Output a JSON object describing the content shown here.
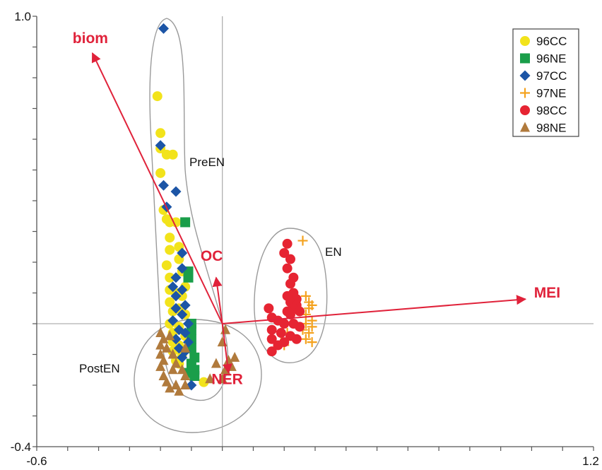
{
  "chart_data": {
    "type": "scatter",
    "title": "",
    "xlabel": "",
    "ylabel": "",
    "xlim": [
      -0.6,
      1.2
    ],
    "ylim": [
      -0.4,
      1.0
    ],
    "x_tick_labels": [
      "-0.6",
      "1.2"
    ],
    "y_tick_labels": [
      "1.0",
      "-0.4"
    ],
    "grid": false,
    "legend_position": "top-right",
    "colors": {
      "axis": "#555555",
      "zero_line": "#b0b0b0",
      "vector": "#e0223a",
      "ellipse": "#9a9a9a"
    },
    "series": [
      {
        "name": "96CC",
        "marker": "circle",
        "color": "#f2e31b",
        "points": [
          [
            -0.21,
            0.74
          ],
          [
            -0.2,
            0.62
          ],
          [
            -0.2,
            0.57
          ],
          [
            -0.18,
            0.55
          ],
          [
            -0.16,
            0.55
          ],
          [
            -0.2,
            0.49
          ],
          [
            -0.19,
            0.37
          ],
          [
            -0.18,
            0.34
          ],
          [
            -0.17,
            0.33
          ],
          [
            -0.15,
            0.33
          ],
          [
            -0.17,
            0.28
          ],
          [
            -0.14,
            0.25
          ],
          [
            -0.17,
            0.24
          ],
          [
            -0.14,
            0.21
          ],
          [
            -0.18,
            0.19
          ],
          [
            -0.13,
            0.17
          ],
          [
            -0.17,
            0.15
          ],
          [
            -0.12,
            0.12
          ],
          [
            -0.17,
            0.11
          ],
          [
            -0.15,
            0.1
          ],
          [
            -0.13,
            0.09
          ],
          [
            -0.17,
            0.07
          ],
          [
            -0.14,
            0.05
          ],
          [
            -0.16,
            0.04
          ],
          [
            -0.12,
            0.03
          ],
          [
            -0.17,
            0.0
          ],
          [
            -0.14,
            -0.01
          ],
          [
            -0.16,
            -0.03
          ],
          [
            -0.12,
            -0.04
          ],
          [
            -0.16,
            -0.06
          ],
          [
            -0.14,
            -0.07
          ],
          [
            -0.16,
            -0.09
          ],
          [
            -0.13,
            -0.1
          ],
          [
            -0.15,
            -0.12
          ],
          [
            -0.14,
            -0.13
          ],
          [
            -0.06,
            -0.19
          ]
        ]
      },
      {
        "name": "96NE",
        "marker": "square",
        "color": "#1a9e4a",
        "points": [
          [
            -0.12,
            0.33
          ],
          [
            -0.11,
            0.17
          ],
          [
            -0.11,
            0.15
          ],
          [
            -0.1,
            0.0
          ],
          [
            -0.1,
            -0.02
          ],
          [
            -0.1,
            -0.05
          ],
          [
            -0.1,
            -0.08
          ],
          [
            -0.09,
            -0.11
          ],
          [
            -0.1,
            -0.13
          ],
          [
            -0.09,
            -0.15
          ],
          [
            -0.11,
            -0.16
          ],
          [
            -0.09,
            -0.17
          ]
        ]
      },
      {
        "name": "97CC",
        "marker": "diamond",
        "color": "#1c55a6",
        "points": [
          [
            -0.19,
            0.96
          ],
          [
            -0.2,
            0.58
          ],
          [
            -0.19,
            0.45
          ],
          [
            -0.15,
            0.43
          ],
          [
            -0.18,
            0.38
          ],
          [
            -0.13,
            0.23
          ],
          [
            -0.13,
            0.18
          ],
          [
            -0.15,
            0.15
          ],
          [
            -0.16,
            0.12
          ],
          [
            -0.13,
            0.11
          ],
          [
            -0.15,
            0.09
          ],
          [
            -0.12,
            0.06
          ],
          [
            -0.15,
            0.05
          ],
          [
            -0.13,
            0.03
          ],
          [
            -0.16,
            0.01
          ],
          [
            -0.11,
            0.0
          ],
          [
            -0.14,
            -0.02
          ],
          [
            -0.12,
            -0.03
          ],
          [
            -0.15,
            -0.05
          ],
          [
            -0.11,
            -0.06
          ],
          [
            -0.14,
            -0.08
          ],
          [
            -0.12,
            -0.09
          ],
          [
            -0.13,
            -0.11
          ],
          [
            -0.1,
            -0.2
          ]
        ]
      },
      {
        "name": "97NE",
        "marker": "plus",
        "color": "#f4a21e",
        "points": [
          [
            0.26,
            0.27
          ],
          [
            0.27,
            0.09
          ],
          [
            0.28,
            0.07
          ],
          [
            0.29,
            0.06
          ],
          [
            0.28,
            0.05
          ],
          [
            0.27,
            0.03
          ],
          [
            0.29,
            0.01
          ],
          [
            0.27,
            0.0
          ],
          [
            0.29,
            -0.01
          ],
          [
            0.26,
            -0.02
          ],
          [
            0.28,
            -0.03
          ],
          [
            0.27,
            -0.05
          ],
          [
            0.29,
            -0.06
          ],
          [
            0.2,
            -0.07
          ],
          [
            0.19,
            -0.06
          ],
          [
            0.21,
            -0.03
          ]
        ]
      },
      {
        "name": "98CC",
        "marker": "circle",
        "color": "#e62432",
        "points": [
          [
            0.21,
            0.26
          ],
          [
            0.2,
            0.23
          ],
          [
            0.22,
            0.21
          ],
          [
            0.21,
            0.18
          ],
          [
            0.23,
            0.15
          ],
          [
            0.22,
            0.13
          ],
          [
            0.23,
            0.1
          ],
          [
            0.21,
            0.09
          ],
          [
            0.24,
            0.08
          ],
          [
            0.22,
            0.07
          ],
          [
            0.24,
            0.06
          ],
          [
            0.23,
            0.05
          ],
          [
            0.21,
            0.04
          ],
          [
            0.25,
            0.04
          ],
          [
            0.22,
            0.03
          ],
          [
            0.15,
            0.05
          ],
          [
            0.16,
            0.02
          ],
          [
            0.18,
            0.01
          ],
          [
            0.2,
            0.0
          ],
          [
            0.23,
            0.0
          ],
          [
            0.25,
            -0.01
          ],
          [
            0.16,
            -0.02
          ],
          [
            0.19,
            -0.03
          ],
          [
            0.22,
            -0.04
          ],
          [
            0.24,
            -0.05
          ],
          [
            0.16,
            -0.05
          ],
          [
            0.2,
            -0.06
          ],
          [
            0.16,
            -0.09
          ],
          [
            0.18,
            -0.07
          ]
        ]
      },
      {
        "name": "98NE",
        "marker": "triangle",
        "color": "#b07a3c",
        "points": [
          [
            -0.2,
            -0.03
          ],
          [
            -0.17,
            -0.04
          ],
          [
            -0.19,
            -0.05
          ],
          [
            -0.2,
            -0.07
          ],
          [
            -0.18,
            -0.08
          ],
          [
            -0.2,
            -0.1
          ],
          [
            -0.19,
            -0.12
          ],
          [
            -0.2,
            -0.14
          ],
          [
            -0.19,
            -0.17
          ],
          [
            -0.18,
            -0.19
          ],
          [
            -0.17,
            -0.21
          ],
          [
            -0.15,
            -0.2
          ],
          [
            -0.14,
            -0.22
          ],
          [
            -0.12,
            -0.2
          ],
          [
            -0.12,
            -0.17
          ],
          [
            -0.13,
            -0.15
          ],
          [
            -0.16,
            -0.1
          ],
          [
            -0.15,
            -0.13
          ],
          [
            -0.12,
            -0.08
          ],
          [
            -0.16,
            -0.15
          ],
          [
            0.01,
            -0.02
          ],
          [
            0.0,
            -0.06
          ],
          [
            0.02,
            -0.12
          ],
          [
            0.04,
            -0.11
          ],
          [
            0.01,
            -0.15
          ],
          [
            0.03,
            -0.14
          ],
          [
            -0.02,
            -0.13
          ],
          [
            0.0,
            -0.18
          ],
          [
            -0.04,
            -0.18
          ]
        ]
      }
    ],
    "vectors": [
      {
        "label": "biom",
        "x": -0.42,
        "y": 0.88
      },
      {
        "label": "MEI",
        "x": 0.98,
        "y": 0.08
      },
      {
        "label": "OC",
        "x": -0.02,
        "y": 0.15
      },
      {
        "label": "NER",
        "x": 0.02,
        "y": -0.16
      }
    ],
    "regions": [
      {
        "label": "PreEN"
      },
      {
        "label": "EN"
      },
      {
        "label": "PostEN"
      }
    ]
  }
}
